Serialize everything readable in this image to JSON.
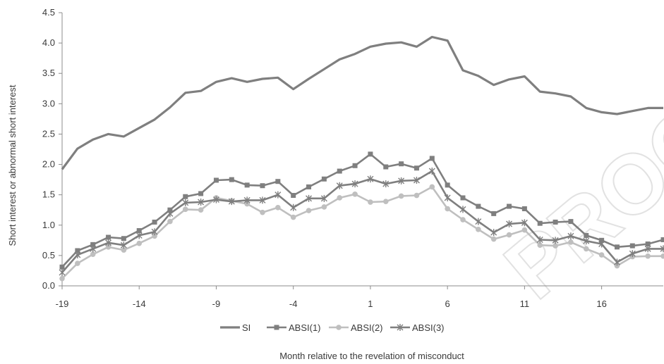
{
  "watermark": "PROOF",
  "chart_data": {
    "type": "line",
    "title": "",
    "xlabel": "Month relative to the revelation of misconduct",
    "ylabel": "Short interest or abnormal short interest",
    "xlim": [
      -19,
      20
    ],
    "ylim": [
      0,
      4.5
    ],
    "x_ticks": [
      -19,
      -14,
      -9,
      -4,
      1,
      6,
      11,
      16
    ],
    "y_ticks": [
      "0.0",
      "0.5",
      "1.0",
      "1.5",
      "2.0",
      "2.5",
      "3.0",
      "3.5",
      "4.0",
      "4.5"
    ],
    "grid": false,
    "legend_position": "bottom",
    "x": [
      -19,
      -18,
      -17,
      -16,
      -15,
      -14,
      -13,
      -12,
      -11,
      -10,
      -9,
      -8,
      -7,
      -6,
      -5,
      -4,
      -3,
      -2,
      -1,
      0,
      1,
      2,
      3,
      4,
      5,
      6,
      7,
      8,
      9,
      10,
      11,
      12,
      13,
      14,
      15,
      16,
      17,
      18,
      19,
      20
    ],
    "series": [
      {
        "name": "SI",
        "color": "#7f7f7f",
        "marker": "none",
        "values": [
          1.92,
          2.26,
          2.41,
          2.5,
          2.46,
          2.6,
          2.74,
          2.94,
          3.18,
          3.21,
          3.36,
          3.42,
          3.36,
          3.41,
          3.43,
          3.24,
          3.41,
          3.57,
          3.73,
          3.82,
          3.94,
          3.99,
          4.01,
          3.94,
          4.1,
          4.04,
          3.55,
          3.46,
          3.31,
          3.4,
          3.45,
          3.2,
          3.17,
          3.12,
          2.93,
          2.86,
          2.83,
          2.88,
          2.93,
          2.93
        ]
      },
      {
        "name": "ABSI(1)",
        "color": "#7f7f7f",
        "marker": "square",
        "values": [
          0.31,
          0.58,
          0.68,
          0.8,
          0.78,
          0.91,
          1.05,
          1.25,
          1.47,
          1.52,
          1.74,
          1.75,
          1.66,
          1.65,
          1.72,
          1.49,
          1.63,
          1.76,
          1.89,
          1.98,
          2.17,
          1.96,
          2.01,
          1.94,
          2.1,
          1.66,
          1.45,
          1.31,
          1.19,
          1.31,
          1.27,
          1.03,
          1.05,
          1.06,
          0.83,
          0.75,
          0.64,
          0.66,
          0.69,
          0.76
        ]
      },
      {
        "name": "ABSI(2)",
        "color": "#bfbfbf",
        "marker": "circle",
        "values": [
          0.12,
          0.37,
          0.52,
          0.64,
          0.59,
          0.7,
          0.82,
          1.06,
          1.26,
          1.25,
          1.45,
          1.4,
          1.35,
          1.21,
          1.29,
          1.13,
          1.24,
          1.3,
          1.45,
          1.51,
          1.38,
          1.39,
          1.48,
          1.49,
          1.63,
          1.27,
          1.09,
          0.93,
          0.77,
          0.84,
          0.92,
          0.67,
          0.66,
          0.72,
          0.61,
          0.51,
          0.33,
          0.48,
          0.49,
          0.49
        ]
      },
      {
        "name": "ABSI(3)",
        "color": "#7f7f7f",
        "marker": "star",
        "values": [
          0.22,
          0.51,
          0.61,
          0.71,
          0.67,
          0.83,
          0.89,
          1.19,
          1.37,
          1.38,
          1.42,
          1.39,
          1.41,
          1.41,
          1.5,
          1.29,
          1.44,
          1.44,
          1.65,
          1.68,
          1.76,
          1.68,
          1.73,
          1.74,
          1.89,
          1.45,
          1.26,
          1.06,
          0.88,
          1.02,
          1.04,
          0.76,
          0.75,
          0.82,
          0.74,
          0.69,
          0.39,
          0.53,
          0.61,
          0.61
        ]
      }
    ]
  }
}
